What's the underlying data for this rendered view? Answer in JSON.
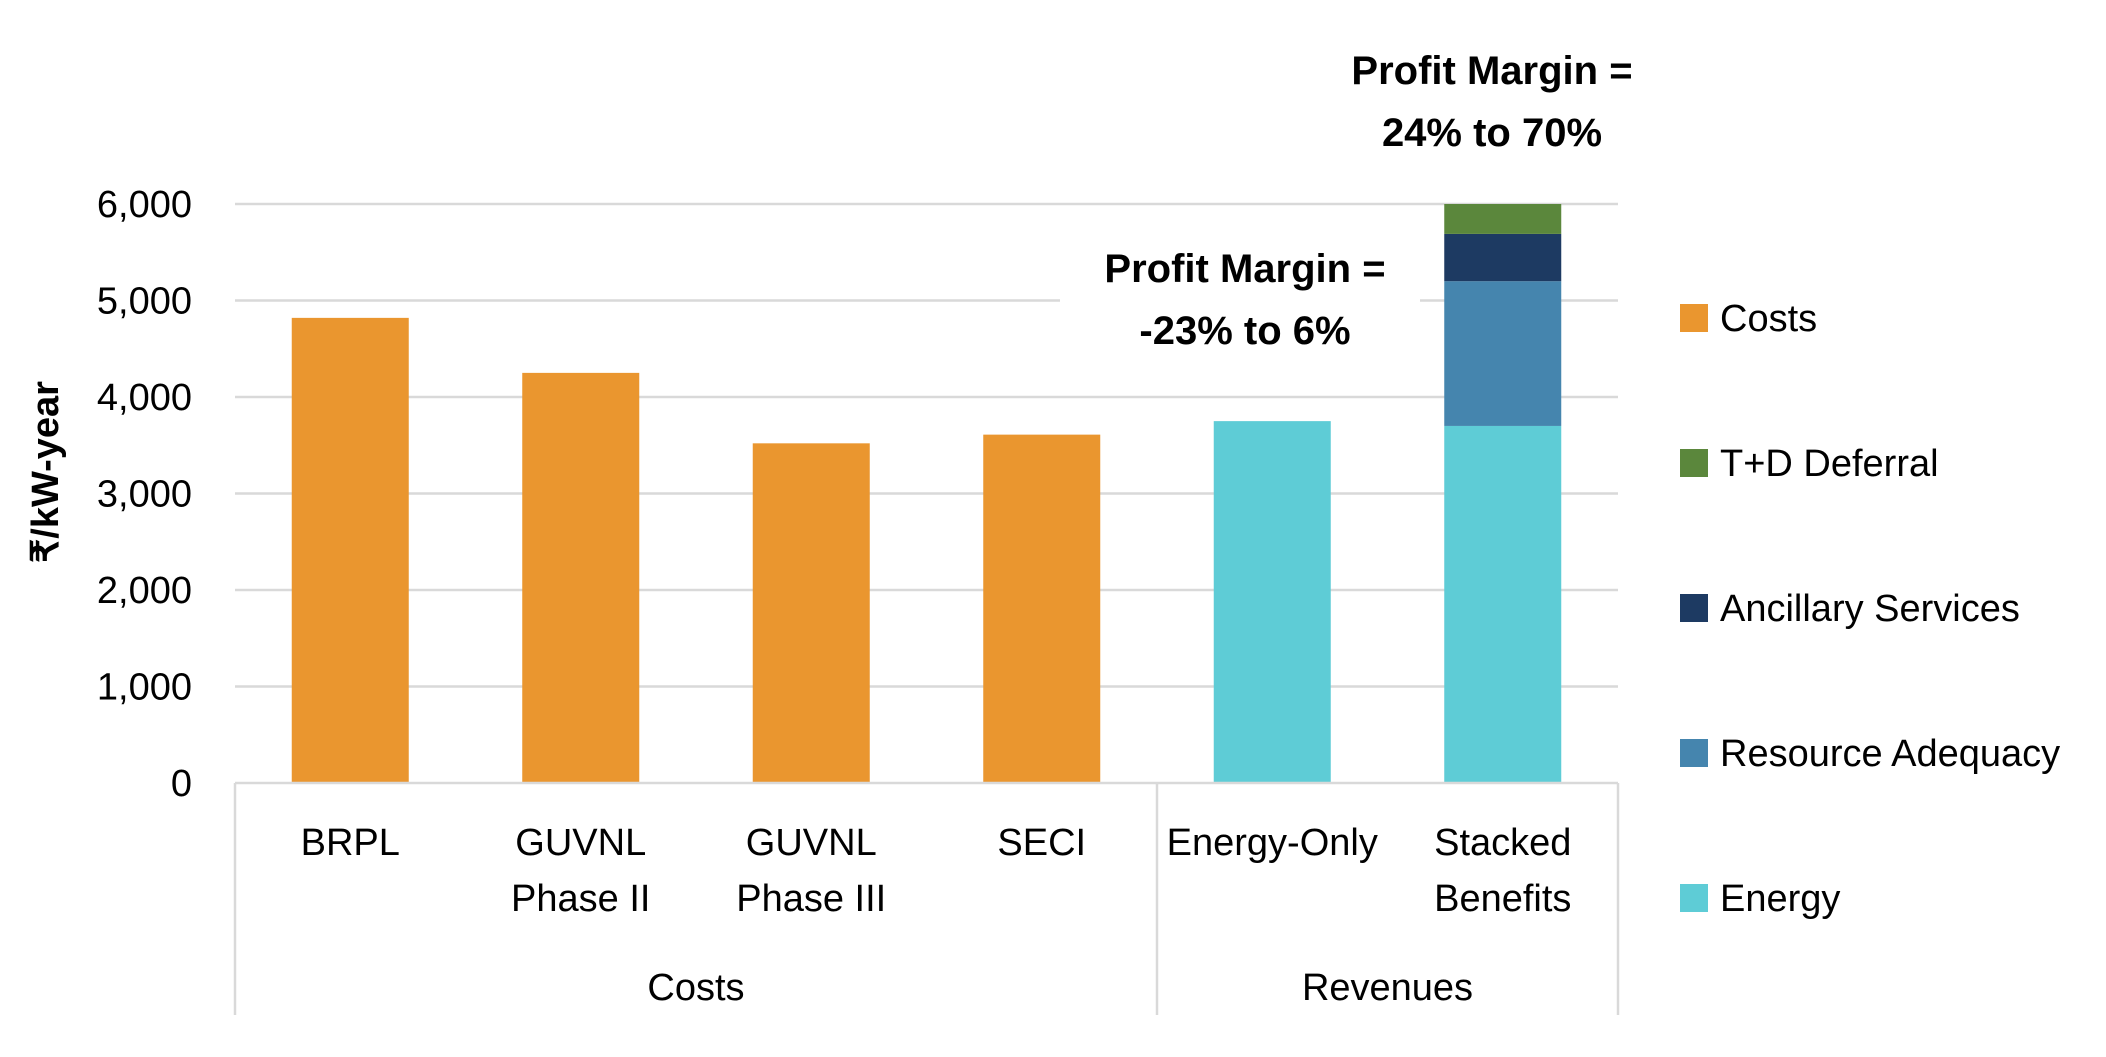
{
  "chart_data": {
    "type": "bar",
    "ylabel": "₹/kW-year",
    "ylim": [
      0,
      6000
    ],
    "yticks": [
      0,
      1000,
      2000,
      3000,
      4000,
      5000,
      6000
    ],
    "ytick_labels": [
      "0",
      "1,000",
      "2,000",
      "3,000",
      "4,000",
      "5,000",
      "6,000"
    ],
    "grid": true,
    "legend_position": "right",
    "categories": [
      "BRPL",
      "GUVNL Phase II",
      "GUVNL Phase III",
      "SECI",
      "Energy-Only",
      "Stacked Benefits"
    ],
    "category_lines": [
      [
        "BRPL"
      ],
      [
        "GUVNL",
        "Phase II"
      ],
      [
        "GUVNL",
        "Phase III"
      ],
      [
        "SECI"
      ],
      [
        "Energy-Only"
      ],
      [
        "Stacked",
        "Benefits"
      ]
    ],
    "groups": [
      {
        "label": "Costs",
        "categories": [
          "BRPL",
          "GUVNL Phase II",
          "GUVNL Phase III",
          "SECI"
        ]
      },
      {
        "label": "Revenues",
        "categories": [
          "Energy-Only",
          "Stacked Benefits"
        ]
      }
    ],
    "series": [
      {
        "name": "Energy",
        "color": "#5ECCD6",
        "values": [
          0,
          0,
          0,
          0,
          3750,
          3700
        ]
      },
      {
        "name": "Resource Adequacy",
        "color": "#4585AE",
        "values": [
          0,
          0,
          0,
          0,
          0,
          1500
        ]
      },
      {
        "name": "Ancillary Services",
        "color": "#1D3A62",
        "values": [
          0,
          0,
          0,
          0,
          0,
          490
        ]
      },
      {
        "name": "T+D Deferral",
        "color": "#5B873C",
        "values": [
          0,
          0,
          0,
          0,
          0,
          310
        ]
      },
      {
        "name": "Costs",
        "color": "#EA962F",
        "values": [
          4820,
          4250,
          3520,
          3610,
          0,
          0
        ]
      }
    ],
    "legend_order": [
      "Costs",
      "T+D Deferral",
      "Ancillary Services",
      "Resource Adequacy",
      "Energy"
    ],
    "annotations": [
      {
        "lines": [
          "Profit Margin =",
          "-23% to 6%"
        ],
        "target": "Energy-Only"
      },
      {
        "lines": [
          "Profit Margin =",
          "24% to 70%"
        ],
        "target": "Stacked Benefits"
      }
    ]
  }
}
